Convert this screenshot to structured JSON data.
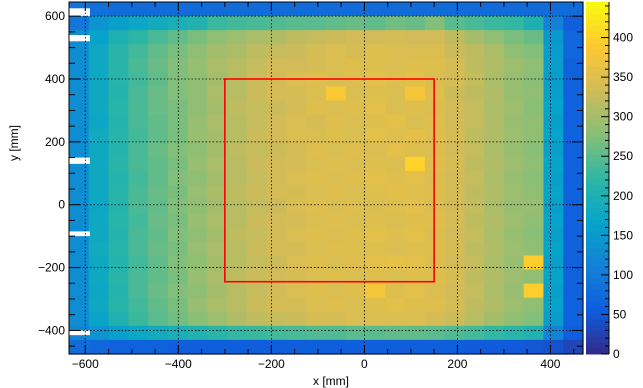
{
  "chart_data": {
    "type": "heatmap",
    "title": "",
    "xlabel": "x [mm]",
    "ylabel": "y [mm]",
    "xlim": [
      -635,
      470
    ],
    "ylim": [
      -475,
      645
    ],
    "x_ticks": [
      -600,
      -400,
      -200,
      0,
      200,
      400
    ],
    "x_tick_labels": [
      "−600",
      "−400",
      "−200",
      "0",
      "200",
      "400"
    ],
    "y_ticks": [
      -400,
      -200,
      0,
      200,
      400,
      600
    ],
    "y_tick_labels": [
      "−400",
      "−200",
      "0",
      "200",
      "400",
      "600"
    ],
    "colorbar": {
      "range": [
        0,
        445
      ],
      "ticks": [
        0,
        50,
        100,
        150,
        200,
        250,
        300,
        350,
        400
      ],
      "tick_labels": [
        "0",
        "50",
        "100",
        "150",
        "200",
        "250",
        "300",
        "350",
        "400"
      ],
      "palette": [
        "#352a87",
        "#0f5cdd",
        "#1481d6",
        "#06a4ca",
        "#2eb7a4",
        "#87bf77",
        "#d1bb59",
        "#fec832",
        "#f9fb0e"
      ]
    },
    "grid": true,
    "region_box": {
      "x": [
        -300,
        150
      ],
      "y": [
        -245,
        400
      ],
      "color": "#ff0000"
    },
    "bins": {
      "x_min": -635,
      "x_max": 470,
      "nx": 26,
      "y_min": -475,
      "y_max": 645,
      "ny": 25
    },
    "values": [
      [
        90,
        85,
        80,
        80,
        80,
        80,
        80,
        80,
        80,
        80,
        80,
        80,
        80,
        80,
        80,
        80,
        80,
        80,
        80,
        80,
        80,
        80,
        80,
        80,
        80,
        80
      ],
      [
        95,
        140,
        160,
        175,
        185,
        195,
        205,
        230,
        235,
        240,
        245,
        250,
        250,
        255,
        260,
        255,
        265,
        260,
        275,
        250,
        240,
        230,
        225,
        200,
        110,
        60
      ],
      [
        130,
        165,
        200,
        220,
        240,
        255,
        270,
        285,
        295,
        305,
        310,
        320,
        325,
        330,
        335,
        335,
        340,
        335,
        335,
        320,
        300,
        285,
        270,
        260,
        150,
        70
      ],
      [
        130,
        180,
        215,
        235,
        255,
        270,
        285,
        300,
        305,
        320,
        325,
        330,
        340,
        345,
        340,
        350,
        345,
        345,
        345,
        330,
        320,
        305,
        285,
        275,
        155,
        70
      ],
      [
        130,
        180,
        215,
        240,
        260,
        275,
        290,
        305,
        315,
        325,
        335,
        335,
        340,
        345,
        350,
        350,
        345,
        350,
        350,
        340,
        320,
        310,
        295,
        285,
        160,
        65
      ],
      [
        130,
        180,
        215,
        235,
        255,
        275,
        285,
        300,
        315,
        330,
        335,
        345,
        350,
        345,
        350,
        355,
        350,
        355,
        345,
        340,
        325,
        305,
        290,
        280,
        155,
        65
      ],
      [
        130,
        180,
        210,
        240,
        260,
        275,
        285,
        305,
        315,
        330,
        340,
        340,
        345,
        385,
        345,
        350,
        345,
        380,
        350,
        330,
        320,
        310,
        290,
        285,
        160,
        65
      ],
      [
        130,
        180,
        215,
        240,
        260,
        270,
        285,
        300,
        320,
        325,
        330,
        340,
        350,
        345,
        350,
        355,
        345,
        350,
        345,
        335,
        325,
        305,
        295,
        280,
        165,
        65
      ],
      [
        130,
        175,
        210,
        240,
        255,
        270,
        290,
        305,
        315,
        325,
        335,
        345,
        340,
        350,
        345,
        350,
        355,
        345,
        350,
        335,
        325,
        310,
        290,
        285,
        160,
        65
      ],
      [
        130,
        185,
        215,
        235,
        255,
        270,
        290,
        300,
        315,
        330,
        335,
        345,
        345,
        350,
        345,
        355,
        350,
        355,
        350,
        340,
        320,
        310,
        295,
        285,
        165,
        65
      ],
      [
        130,
        180,
        210,
        240,
        260,
        275,
        285,
        300,
        320,
        325,
        330,
        340,
        350,
        345,
        350,
        345,
        355,
        350,
        345,
        335,
        325,
        305,
        290,
        280,
        160,
        65
      ],
      [
        130,
        180,
        215,
        240,
        255,
        270,
        290,
        305,
        315,
        330,
        335,
        340,
        345,
        350,
        345,
        350,
        345,
        400,
        350,
        340,
        320,
        310,
        295,
        285,
        165,
        65
      ],
      [
        130,
        180,
        210,
        235,
        255,
        275,
        285,
        300,
        315,
        325,
        335,
        345,
        350,
        345,
        350,
        355,
        350,
        355,
        345,
        335,
        325,
        305,
        290,
        280,
        160,
        65
      ],
      [
        130,
        180,
        215,
        240,
        260,
        270,
        290,
        305,
        320,
        330,
        340,
        340,
        345,
        350,
        345,
        350,
        355,
        350,
        350,
        340,
        320,
        310,
        295,
        285,
        165,
        65
      ],
      [
        130,
        175,
        210,
        240,
        255,
        275,
        285,
        300,
        315,
        325,
        330,
        345,
        350,
        345,
        350,
        345,
        350,
        355,
        345,
        335,
        325,
        305,
        290,
        290,
        160,
        65
      ],
      [
        130,
        180,
        215,
        235,
        260,
        270,
        290,
        305,
        315,
        330,
        335,
        340,
        345,
        350,
        345,
        350,
        345,
        350,
        350,
        340,
        320,
        310,
        295,
        285,
        165,
        65
      ],
      [
        130,
        180,
        210,
        240,
        255,
        275,
        285,
        300,
        320,
        325,
        335,
        345,
        350,
        345,
        350,
        355,
        350,
        355,
        345,
        335,
        325,
        305,
        290,
        280,
        160,
        65
      ],
      [
        130,
        185,
        215,
        240,
        260,
        270,
        290,
        305,
        315,
        330,
        340,
        340,
        345,
        350,
        350,
        350,
        345,
        350,
        350,
        340,
        320,
        310,
        295,
        285,
        165,
        65
      ],
      [
        130,
        180,
        210,
        235,
        255,
        275,
        285,
        300,
        315,
        325,
        330,
        345,
        350,
        345,
        350,
        355,
        360,
        355,
        345,
        335,
        325,
        305,
        290,
        395,
        160,
        65
      ],
      [
        130,
        180,
        215,
        240,
        255,
        270,
        290,
        305,
        320,
        330,
        335,
        340,
        345,
        350,
        345,
        350,
        345,
        350,
        350,
        340,
        320,
        310,
        295,
        285,
        165,
        65
      ],
      [
        130,
        175,
        210,
        240,
        260,
        275,
        285,
        300,
        315,
        325,
        335,
        345,
        350,
        345,
        350,
        380,
        350,
        355,
        345,
        335,
        325,
        305,
        290,
        395,
        160,
        65
      ],
      [
        130,
        180,
        215,
        235,
        255,
        270,
        290,
        305,
        315,
        330,
        340,
        340,
        345,
        350,
        345,
        350,
        355,
        350,
        350,
        340,
        320,
        310,
        295,
        285,
        165,
        65
      ],
      [
        130,
        170,
        205,
        230,
        250,
        265,
        280,
        295,
        310,
        320,
        325,
        330,
        340,
        340,
        345,
        345,
        345,
        345,
        340,
        330,
        315,
        300,
        285,
        275,
        155,
        65
      ],
      [
        120,
        140,
        160,
        175,
        185,
        195,
        205,
        215,
        225,
        230,
        235,
        240,
        245,
        245,
        250,
        250,
        255,
        255,
        250,
        245,
        235,
        225,
        215,
        205,
        115,
        60
      ],
      [
        80,
        70,
        65,
        65,
        65,
        60,
        60,
        60,
        60,
        60,
        60,
        60,
        60,
        60,
        60,
        60,
        60,
        60,
        60,
        60,
        55,
        55,
        55,
        50,
        45,
        30
      ]
    ]
  }
}
